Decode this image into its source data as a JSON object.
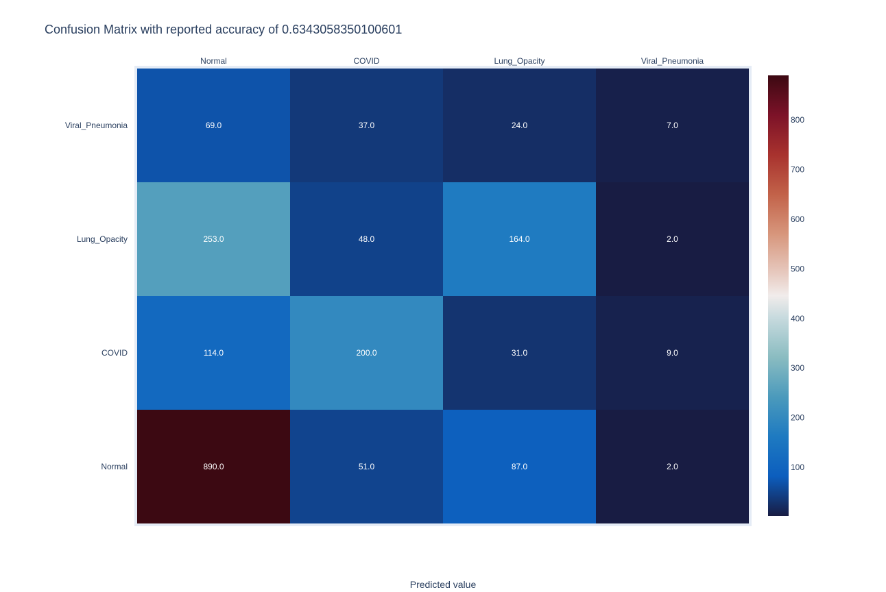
{
  "chart_data": {
    "type": "heatmap",
    "title": "Confusion Matrix with reported accuracy of 0.6343058350100601",
    "xlabel": "Predicted value",
    "ylabel": "",
    "x_categories": [
      "Normal",
      "COVID",
      "Lung_Opacity",
      "Viral_Pneumonia"
    ],
    "y_categories_top_to_bottom": [
      "Viral_Pneumonia",
      "Lung_Opacity",
      "COVID",
      "Normal"
    ],
    "z_top_to_bottom": [
      [
        69,
        37,
        24,
        7
      ],
      [
        253,
        48,
        164,
        2
      ],
      [
        114,
        200,
        31,
        9
      ],
      [
        890,
        51,
        87,
        2
      ]
    ],
    "cell_labels_top_to_bottom": [
      [
        "69.0",
        "37.0",
        "24.0",
        "7.0"
      ],
      [
        "253.0",
        "48.0",
        "164.0",
        "2.0"
      ],
      [
        "114.0",
        "200.0",
        "31.0",
        "9.0"
      ],
      [
        "890.0",
        "51.0",
        "87.0",
        "2.0"
      ]
    ],
    "x_axis_side": "top",
    "colorscale": "balance",
    "zmin": 2,
    "zmax": 890,
    "colorbar_ticks": [
      "100",
      "200",
      "300",
      "400",
      "500",
      "600",
      "700",
      "800"
    ]
  }
}
